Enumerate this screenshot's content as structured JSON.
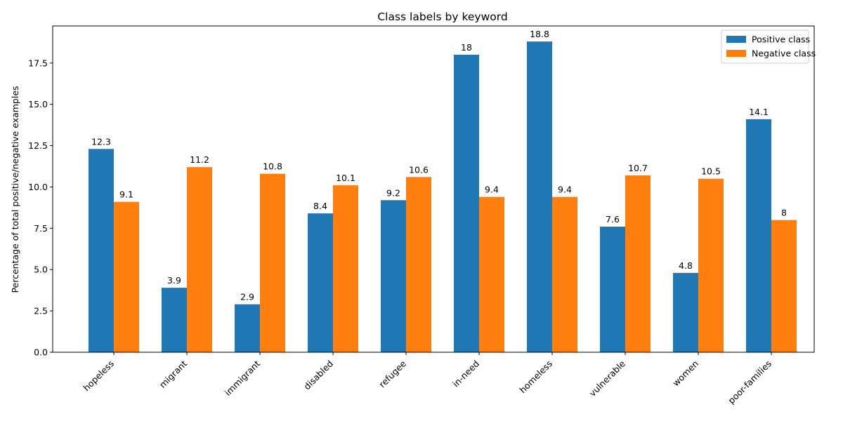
{
  "chart_data": {
    "type": "bar",
    "title": "Class labels by keyword",
    "xlabel": "",
    "ylabel": "Percentage of total positive/negative examples",
    "categories": [
      "hopeless",
      "migrant",
      "immigrant",
      "disabled",
      "refugee",
      "in-need",
      "homeless",
      "vulnerable",
      "women",
      "poor-families"
    ],
    "series": [
      {
        "name": "Positive class",
        "color": "#1f77b4",
        "values": [
          12.3,
          3.9,
          2.9,
          8.4,
          9.2,
          18,
          18.8,
          7.6,
          4.8,
          14.1
        ]
      },
      {
        "name": "Negative class",
        "color": "#ff7f0e",
        "values": [
          9.1,
          11.2,
          10.8,
          10.1,
          10.6,
          9.4,
          9.4,
          10.7,
          10.5,
          8
        ]
      }
    ],
    "ylim": [
      0,
      19.74
    ],
    "yticks": [
      0.0,
      2.5,
      5.0,
      7.5,
      10.0,
      12.5,
      15.0,
      17.5
    ],
    "ytick_labels": [
      "0.0",
      "2.5",
      "5.0",
      "7.5",
      "10.0",
      "12.5",
      "15.0",
      "17.5"
    ],
    "grid": false,
    "legend_position": "top-right"
  }
}
